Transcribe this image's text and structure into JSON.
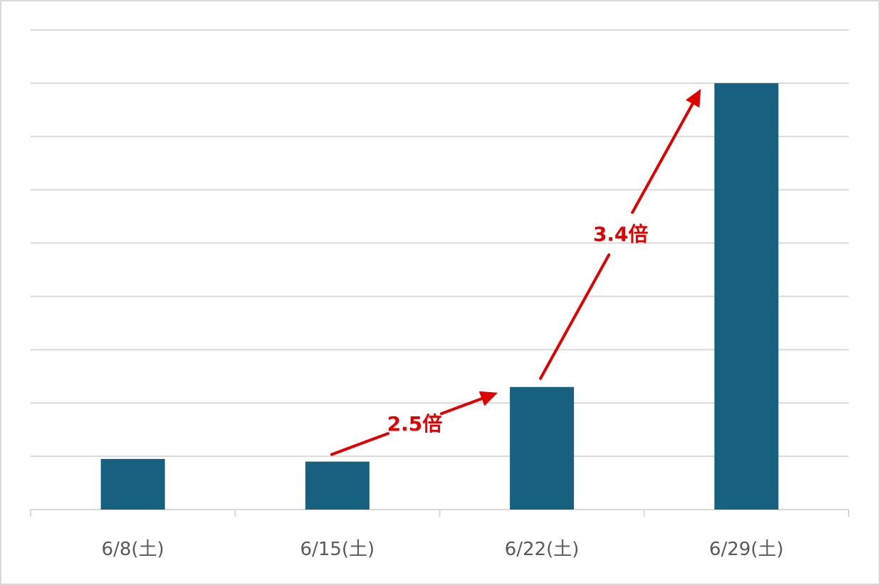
{
  "chart_data": {
    "type": "bar",
    "title": "",
    "xlabel": "",
    "ylabel": "",
    "categories": [
      "6/8(土)",
      "6/15(土)",
      "6/22(土)",
      "6/29(土)"
    ],
    "values": [
      0.95,
      0.9,
      2.3,
      8.0
    ],
    "ylim": [
      0,
      9
    ],
    "grid": true,
    "legend": "none",
    "bar_color": "#17607f",
    "grid_color": "#d9d9d9",
    "annotations": [
      {
        "from": 1,
        "to": 2,
        "label": "2.5倍"
      },
      {
        "from": 2,
        "to": 3,
        "label": "3.4倍"
      }
    ],
    "annotation_color": "#e00000"
  }
}
